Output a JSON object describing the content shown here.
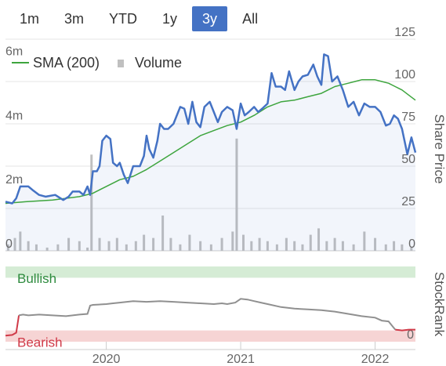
{
  "range_selector": {
    "tabs": [
      {
        "label": "1m",
        "active": false
      },
      {
        "label": "3m",
        "active": false
      },
      {
        "label": "YTD",
        "active": false
      },
      {
        "label": "1y",
        "active": false
      },
      {
        "label": "3y",
        "active": true
      },
      {
        "label": "All",
        "active": false
      }
    ]
  },
  "colors": {
    "price_line": "#4472c4",
    "sma_line": "#3ea53e",
    "volume_bar": "#c0c0c0",
    "bullish_band": "#d5ecd5",
    "bearish_band": "#f6d4d4",
    "bullish_text": "#2e8b3e",
    "bearish_text": "#d03a48",
    "stockrank_line": "#909090",
    "stockrank_bearish_line": "#d03a48",
    "grid": "#e6e6e6"
  },
  "chart_data": [
    {
      "type": "line",
      "legend": [
        {
          "name": "SMA (200)",
          "icon": "line-swatch"
        },
        {
          "name": "Volume",
          "icon": "square-swatch"
        }
      ],
      "legend_position": "top-left",
      "grid": true,
      "x_ticks": [
        "2020",
        "2021",
        "2022"
      ],
      "x_tick_values": [
        2020.0,
        2021.0,
        2022.0
      ],
      "x_range": [
        2019.25,
        2022.3
      ],
      "y_axis_right": {
        "title": "Share Price",
        "ticks": [
          "125",
          "100",
          "75",
          "50",
          "25",
          "0"
        ],
        "tick_values": [
          125,
          100,
          75,
          50,
          25,
          0
        ],
        "range": [
          0,
          125
        ]
      },
      "y_axis_left": {
        "title": "",
        "ticks": [
          "6m",
          "4m",
          "2m",
          "0"
        ],
        "tick_values": [
          6,
          4,
          2,
          0
        ],
        "range": [
          0,
          6.6
        ]
      },
      "series": [
        {
          "name": "",
          "kind": "price",
          "x": [
            2019.25,
            2019.3,
            2019.33,
            2019.36,
            2019.42,
            2019.45,
            2019.5,
            2019.55,
            2019.62,
            2019.68,
            2019.72,
            2019.75,
            2019.8,
            2019.83,
            2019.86,
            2019.88,
            2019.9,
            2019.93,
            2019.95,
            2019.97,
            2020.0,
            2020.03,
            2020.05,
            2020.08,
            2020.1,
            2020.13,
            2020.16,
            2020.2,
            2020.25,
            2020.28,
            2020.3,
            2020.32,
            2020.35,
            2020.38,
            2020.4,
            2020.43,
            2020.46,
            2020.5,
            2020.55,
            2020.58,
            2020.61,
            2020.64,
            2020.67,
            2020.7,
            2020.73,
            2020.77,
            2020.8,
            2020.83,
            2020.86,
            2020.9,
            2020.94,
            2020.97,
            2021.0,
            2021.03,
            2021.06,
            2021.1,
            2021.13,
            2021.16,
            2021.2,
            2021.23,
            2021.26,
            2021.3,
            2021.33,
            2021.36,
            2021.4,
            2021.43,
            2021.46,
            2021.5,
            2021.54,
            2021.57,
            2021.6,
            2021.62,
            2021.65,
            2021.68,
            2021.72,
            2021.76,
            2021.8,
            2021.84,
            2021.88,
            2021.92,
            2021.96,
            2022.0,
            2022.04,
            2022.08,
            2022.11,
            2022.14,
            2022.17,
            2022.2,
            2022.24,
            2022.27,
            2022.3
          ],
          "y": [
            29,
            28,
            31,
            38,
            38,
            36,
            33,
            32,
            33,
            30,
            32,
            35,
            35,
            33,
            38,
            33,
            47,
            47,
            50,
            65,
            68,
            66,
            52,
            50,
            52,
            45,
            40,
            50,
            50,
            56,
            68,
            60,
            55,
            65,
            75,
            72,
            72,
            75,
            85,
            84,
            75,
            88,
            76,
            73,
            85,
            88,
            82,
            76,
            82,
            85,
            83,
            72,
            87,
            80,
            82,
            85,
            82,
            84,
            87,
            105,
            97,
            97,
            95,
            106,
            95,
            100,
            103,
            104,
            110,
            103,
            98,
            116,
            115,
            100,
            103,
            95,
            85,
            88,
            80,
            87,
            85,
            85,
            82,
            74,
            75,
            80,
            78,
            72,
            57,
            67,
            58
          ]
        },
        {
          "name": "SMA (200)",
          "kind": "sma",
          "x": [
            2019.25,
            2019.4,
            2019.6,
            2019.8,
            2019.9,
            2020.0,
            2020.1,
            2020.2,
            2020.3,
            2020.4,
            2020.5,
            2020.6,
            2020.7,
            2020.8,
            2020.9,
            2021.0,
            2021.1,
            2021.2,
            2021.3,
            2021.4,
            2021.5,
            2021.6,
            2021.65,
            2021.7,
            2021.75,
            2021.8,
            2021.85,
            2021.9,
            2021.95,
            2022.0,
            2022.05,
            2022.1,
            2022.15,
            2022.2,
            2022.25,
            2022.3
          ],
          "y": [
            28,
            29,
            30,
            32,
            34,
            38,
            42,
            44,
            48,
            53,
            58,
            63,
            68,
            71,
            74,
            76,
            80,
            85,
            88,
            89,
            91,
            93,
            95,
            97,
            98,
            99,
            100,
            101,
            101,
            101,
            100,
            99,
            97,
            95,
            92,
            89
          ]
        },
        {
          "name": "Volume",
          "kind": "volume",
          "x": [
            2019.27,
            2019.32,
            2019.36,
            2019.42,
            2019.48,
            2019.56,
            2019.64,
            2019.72,
            2019.8,
            2019.86,
            2019.89,
            2019.95,
            2020.02,
            2020.08,
            2020.15,
            2020.22,
            2020.28,
            2020.35,
            2020.42,
            2020.48,
            2020.55,
            2020.62,
            2020.7,
            2020.78,
            2020.86,
            2020.94,
            2020.97,
            2021.02,
            2021.08,
            2021.14,
            2021.2,
            2021.27,
            2021.34,
            2021.4,
            2021.46,
            2021.52,
            2021.58,
            2021.64,
            2021.7,
            2021.76,
            2021.84,
            2021.92,
            2022.0,
            2022.08,
            2022.14,
            2022.2,
            2022.27
          ],
          "y": [
            0.2,
            0.4,
            0.6,
            0.3,
            0.2,
            0.1,
            0.2,
            0.4,
            0.3,
            0.1,
            3.0,
            0.4,
            0.3,
            0.4,
            0.2,
            0.3,
            0.5,
            0.4,
            1.1,
            0.4,
            0.2,
            0.5,
            0.3,
            0.2,
            0.4,
            0.6,
            3.5,
            0.5,
            0.3,
            0.4,
            0.3,
            0.2,
            0.4,
            0.3,
            0.2,
            0.5,
            0.7,
            0.3,
            0.4,
            0.3,
            0.2,
            0.6,
            0.4,
            0.2,
            0.3,
            0.2,
            0.1
          ]
        }
      ]
    },
    {
      "type": "line",
      "y_axis_right": {
        "title": "StockRank",
        "ticks": [
          "0"
        ],
        "tick_values": [
          0
        ],
        "range": [
          0,
          100
        ]
      },
      "bands": [
        {
          "label": "Bullish",
          "from": 85,
          "to": 100
        },
        {
          "label": "Bearish",
          "from": 0,
          "to": 15
        }
      ],
      "series": [
        {
          "name": "",
          "x": [
            2019.25,
            2019.3,
            2019.33,
            2019.35,
            2019.38,
            2019.42,
            2019.5,
            2019.6,
            2019.7,
            2019.8,
            2019.86,
            2019.88,
            2019.9,
            2020.0,
            2020.05,
            2020.1,
            2020.2,
            2020.3,
            2020.4,
            2020.5,
            2020.6,
            2020.7,
            2020.8,
            2020.86,
            2020.9,
            2020.96,
            2021.0,
            2021.05,
            2021.1,
            2021.15,
            2021.2,
            2021.3,
            2021.4,
            2021.5,
            2021.6,
            2021.7,
            2021.8,
            2021.9,
            2022.0,
            2022.05,
            2022.1,
            2022.15,
            2022.2,
            2022.25,
            2022.3
          ],
          "y": [
            8,
            9,
            12,
            35,
            36,
            35,
            36,
            35,
            34,
            36,
            37,
            48,
            49,
            50,
            51,
            52,
            54,
            53,
            54,
            53,
            52,
            51,
            50,
            51,
            50,
            52,
            57,
            56,
            54,
            52,
            50,
            46,
            44,
            43,
            42,
            40,
            37,
            34,
            32,
            28,
            27,
            16,
            15,
            16,
            16
          ]
        }
      ]
    }
  ]
}
